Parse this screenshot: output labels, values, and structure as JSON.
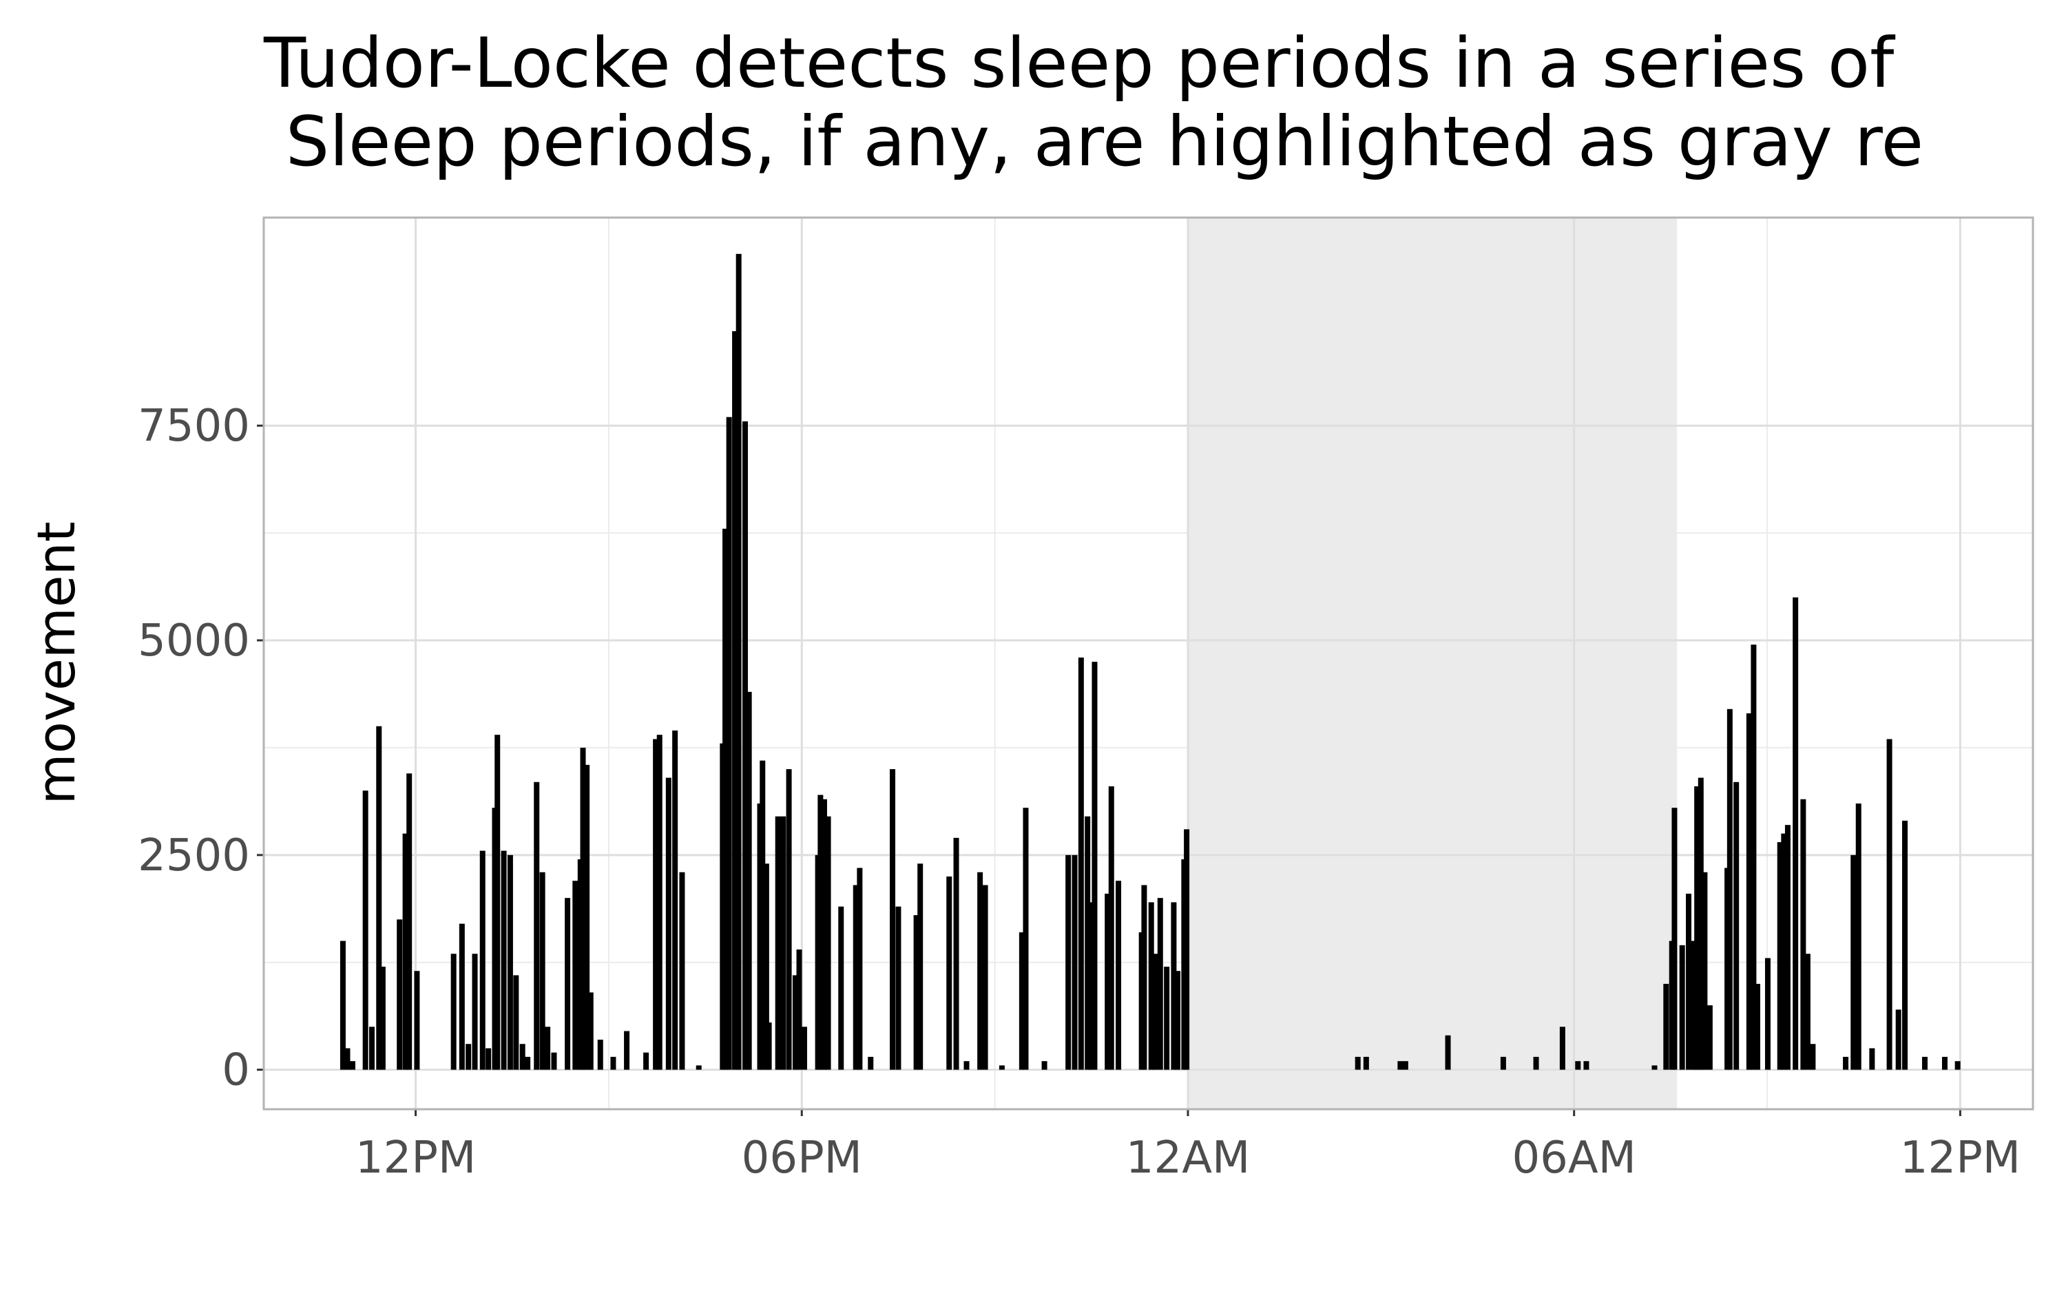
{
  "chart_data": {
    "type": "bar",
    "title": [
      "Tudor-Locke detects sleep periods in a series of",
      " Sleep periods, if any, are highlighted as gray re"
    ],
    "y_label": "movement",
    "color": "#000000",
    "shade_color": "#ebebeb",
    "sleep_periods": [
      [
        24,
        31.6
      ]
    ],
    "x": [
      10.87,
      10.94,
      11.02,
      11.22,
      11.32,
      11.43,
      11.49,
      11.75,
      11.84,
      11.9,
      12.02,
      12.59,
      12.72,
      12.82,
      12.92,
      13.04,
      13.13,
      13.23,
      13.27,
      13.37,
      13.47,
      13.56,
      13.66,
      13.74,
      13.88,
      13.97,
      14.05,
      14.15,
      14.36,
      14.48,
      14.56,
      14.6,
      14.66,
      14.72,
      14.87,
      15.07,
      15.28,
      15.58,
      15.73,
      15.79,
      15.93,
      16.03,
      16.14,
      16.4,
      16.77,
      16.81,
      16.87,
      16.96,
      17.02,
      17.12,
      17.18,
      17.35,
      17.39,
      17.45,
      17.49,
      17.63,
      17.71,
      17.8,
      17.9,
      17.96,
      18.04,
      18.25,
      18.29,
      18.35,
      18.41,
      18.61,
      18.84,
      18.9,
      19.07,
      19.41,
      19.5,
      19.78,
      19.84,
      20.29,
      20.4,
      20.56,
      20.77,
      20.85,
      21.11,
      21.42,
      21.48,
      21.77,
      22.14,
      22.24,
      22.34,
      22.44,
      22.49,
      22.55,
      22.75,
      22.81,
      22.92,
      23.28,
      23.32,
      23.43,
      23.49,
      23.57,
      23.67,
      23.78,
      23.84,
      23.94,
      23.98,
      26.64,
      26.77,
      27.3,
      27.38,
      28.04,
      28.9,
      29.41,
      29.82,
      30.06,
      30.19,
      31.25,
      31.43,
      31.52,
      31.56,
      31.68,
      31.78,
      31.86,
      31.91,
      31.97,
      32.03,
      32.11,
      32.38,
      32.42,
      32.52,
      32.72,
      32.79,
      32.85,
      33.01,
      33.2,
      33.26,
      33.32,
      33.44,
      33.56,
      33.63,
      33.71,
      34.22,
      34.34,
      34.42,
      34.63,
      34.9,
      35.04,
      35.14,
      35.45,
      35.76,
      35.96
    ],
    "values": [
      1500,
      250,
      100,
      3250,
      500,
      4000,
      1200,
      1750,
      2750,
      3450,
      1150,
      1350,
      1700,
      300,
      1350,
      2550,
      250,
      3050,
      3900,
      2550,
      2500,
      1100,
      300,
      150,
      3350,
      2300,
      500,
      200,
      2000,
      2200,
      2450,
      3750,
      3550,
      900,
      350,
      150,
      450,
      200,
      3850,
      3900,
      3400,
      3950,
      2300,
      50,
      3800,
      6300,
      7600,
      8600,
      9500,
      7550,
      4400,
      3100,
      3600,
      2400,
      550,
      2950,
      2950,
      3500,
      1100,
      1400,
      500,
      2500,
      3200,
      3150,
      2950,
      1900,
      2150,
      2350,
      150,
      3500,
      1900,
      1800,
      2400,
      2250,
      2700,
      100,
      2300,
      2150,
      50,
      1600,
      3050,
      100,
      2500,
      2500,
      4800,
      2950,
      1950,
      4750,
      2050,
      3300,
      2200,
      1600,
      2150,
      1950,
      1350,
      2000,
      1200,
      1950,
      1150,
      2450,
      2800,
      150,
      150,
      100,
      100,
      400,
      150,
      150,
      500,
      100,
      100,
      50,
      1000,
      1500,
      3050,
      1450,
      2050,
      1500,
      3300,
      3400,
      2300,
      750,
      2350,
      4200,
      3350,
      4150,
      4950,
      1000,
      1300,
      2650,
      2750,
      2850,
      5500,
      3150,
      1350,
      300,
      150,
      2500,
      3100,
      250,
      3850,
      700,
      2900,
      150,
      150,
      100
    ],
    "xlim": [
      9.64,
      37.13
    ],
    "xticks": [
      {
        "value": 12,
        "label": "12PM"
      },
      {
        "value": 18,
        "label": "06PM"
      },
      {
        "value": 24,
        "label": "12AM"
      },
      {
        "value": 30,
        "label": "06AM"
      },
      {
        "value": 36,
        "label": "12PM"
      }
    ],
    "ylim": [
      -460,
      9923
    ],
    "yticks": [
      0,
      2500,
      5000,
      7500
    ],
    "grid": true
  }
}
